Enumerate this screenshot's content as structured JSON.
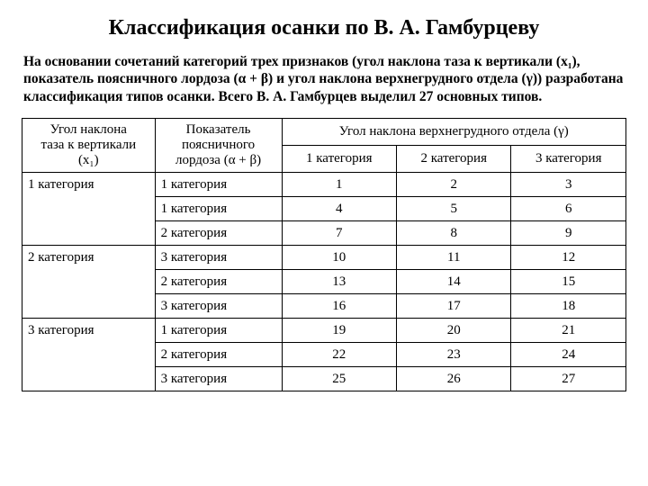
{
  "title": "Классификация осанки по В. А. Гамбурцеву",
  "intro": "На основании сочетаний категорий трех признаков (угол наклона таза к вертикали (x₁), показатель поясничного лордоза (α + β) и угол наклона верхнегрудного отдела (γ)) разработана классификация типов осанки. Всего В. А. Гамбурцев выделил 27 основных типов.",
  "table": {
    "header": {
      "col1_line1": "Угол наклона",
      "col1_line2": "таза к вертикали",
      "col1_line3": "(x₁)",
      "col2_line1": "Показатель",
      "col2_line2": "поясничного",
      "col2_line3": "лордоза (α + β)",
      "col_merge": "Угол наклона верхнегрудного отдела (γ)",
      "sub1": "1 категория",
      "sub2": "2 категория",
      "sub3": "3 категория"
    },
    "groups": [
      {
        "col1": "1 категория",
        "rows": [
          {
            "col2": "1 категория",
            "v": [
              1,
              2,
              3
            ]
          },
          {
            "col2": "1 категория",
            "v": [
              4,
              5,
              6
            ]
          },
          {
            "col2": "2 категория",
            "v": [
              7,
              8,
              9
            ]
          }
        ]
      },
      {
        "col1": "2 категория",
        "rows": [
          {
            "col2": "3 категория",
            "v": [
              10,
              11,
              12
            ]
          },
          {
            "col2": "2 категория",
            "v": [
              13,
              14,
              15
            ]
          },
          {
            "col2": "3 категория",
            "v": [
              16,
              17,
              18
            ]
          }
        ]
      },
      {
        "col1": "3 категория",
        "rows": [
          {
            "col2": "1 категория",
            "v": [
              19,
              20,
              21
            ]
          },
          {
            "col2": "2 категория",
            "v": [
              22,
              23,
              24
            ]
          },
          {
            "col2": "3 категория",
            "v": [
              25,
              26,
              27
            ]
          }
        ]
      }
    ]
  },
  "colors": {
    "background": "#ffffff",
    "text": "#000000",
    "border": "#000000"
  },
  "fontsizes": {
    "title": 24,
    "intro": 15.5,
    "table": 15
  }
}
